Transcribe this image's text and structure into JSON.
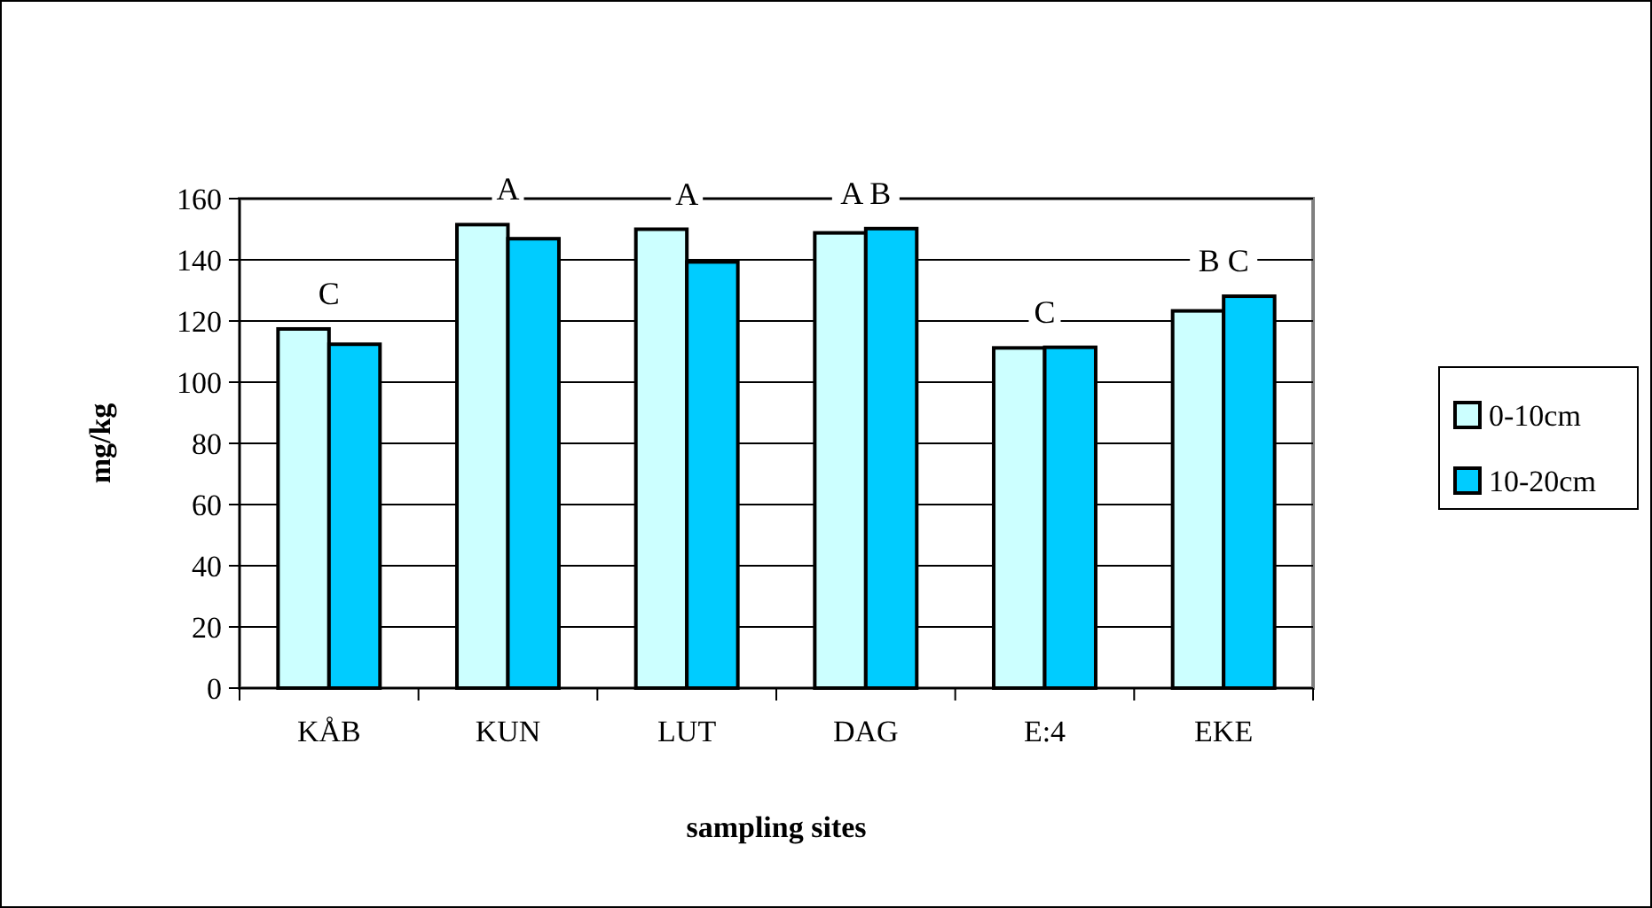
{
  "chart_data": {
    "type": "bar",
    "xlabel": "sampling sites",
    "ylabel": "mg/kg",
    "categories": [
      "KÅB",
      "KUN",
      "LUT",
      "DAG",
      "E:4",
      "EKE"
    ],
    "series": [
      {
        "name": "0-10cm",
        "color": "#ccffff",
        "values": [
          117.4,
          151.5,
          150,
          148.8,
          111.2,
          123.3
        ]
      },
      {
        "name": "10-20cm",
        "color": "#00ccff",
        "values": [
          112.4,
          146.9,
          139.3,
          150.2,
          111.4,
          128.1
        ]
      }
    ],
    "ylim": [
      0,
      160
    ],
    "yticks": [
      0,
      20,
      40,
      60,
      80,
      100,
      120,
      140,
      160
    ],
    "grid": "y",
    "legend": "right",
    "annotations": [
      {
        "text": "C",
        "x": "KÅB",
        "y": 117.4
      },
      {
        "text": "A",
        "x": "KUN",
        "y": 151.5
      },
      {
        "text": "A",
        "x": "LUT",
        "y": 150
      },
      {
        "text": "A B",
        "x": "DAG",
        "y": 150.2
      },
      {
        "text": "C",
        "x": "E:4",
        "y": 111.4
      },
      {
        "text": "B C",
        "x": "EKE",
        "y": 128.1
      }
    ]
  }
}
